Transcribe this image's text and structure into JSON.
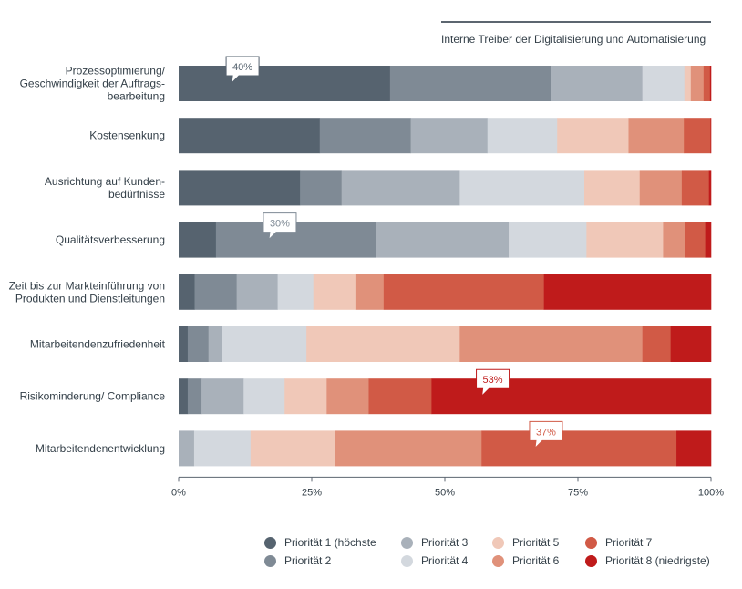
{
  "subtitle": "Interne Treiber der Digitalisierung und Automatisierung",
  "colors": [
    "#56636f",
    "#7f8a95",
    "#a9b1ba",
    "#d3d8de",
    "#f0c8b8",
    "#e0917a",
    "#d15a46",
    "#bf1b1b"
  ],
  "chart_data": {
    "type": "bar",
    "orientation": "horizontal",
    "stacked": true,
    "percent": true,
    "categories": [
      [
        "Prozessoptimierung/",
        "Geschwindigkeit der Auftrags-",
        "bearbeitung"
      ],
      [
        "Kostensenkung"
      ],
      [
        "Ausrichtung auf Kunden-",
        "bedürfnisse"
      ],
      [
        "Qualitätsverbesserung"
      ],
      [
        "Zeit bis zur Markteinführung von",
        "Produkten und Dienstleitungen"
      ],
      [
        "Mitarbeitendenzufriedenheit"
      ],
      [
        "Risikominderung/ Compliance"
      ],
      [
        "Mitarbeitendenentwicklung"
      ]
    ],
    "series": [
      {
        "name": "Priorität 1 (höchste",
        "values": [
          39.7,
          26.5,
          22.8,
          7.0,
          3.0,
          1.7,
          1.7,
          0.0
        ]
      },
      {
        "name": "Priorität 2",
        "values": [
          30.2,
          17.1,
          7.8,
          30.1,
          7.9,
          3.9,
          2.6,
          0.0
        ]
      },
      {
        "name": "Priorität 3",
        "values": [
          17.2,
          14.4,
          22.2,
          24.9,
          7.7,
          2.6,
          7.9,
          2.9
        ]
      },
      {
        "name": "Priorität 4",
        "values": [
          7.9,
          13.1,
          23.4,
          14.6,
          6.7,
          15.8,
          7.7,
          10.6
        ]
      },
      {
        "name": "Priorität 5",
        "values": [
          1.2,
          13.4,
          10.4,
          14.4,
          7.9,
          28.8,
          7.9,
          15.8
        ]
      },
      {
        "name": "Priorität 6",
        "values": [
          2.4,
          10.4,
          7.9,
          4.1,
          5.3,
          34.3,
          7.9,
          27.6
        ]
      },
      {
        "name": "Priorität 7",
        "values": [
          1.2,
          5.0,
          5.1,
          3.8,
          30.1,
          5.3,
          11.8,
          36.6
        ]
      },
      {
        "name": "Priorität 8 (niedrigste)",
        "values": [
          0.2,
          0.1,
          0.4,
          1.1,
          31.4,
          7.6,
          52.5,
          6.5
        ]
      }
    ],
    "xlim": [
      0,
      100
    ],
    "xticks": [
      0,
      25,
      50,
      75,
      100
    ],
    "xtick_labels": [
      "0%",
      "25%",
      "50%",
      "75%",
      "100%"
    ],
    "grid": false,
    "legend_position": "bottom",
    "annotations": [
      {
        "text": "40%",
        "category_index": 0,
        "at_value": 12,
        "color": "#56636f"
      },
      {
        "text": "30%",
        "category_index": 3,
        "at_value": 19,
        "color": "#7f8a95"
      },
      {
        "text": "53%",
        "category_index": 6,
        "at_value": 59,
        "color": "#bf1b1b"
      },
      {
        "text": "37%",
        "category_index": 7,
        "at_value": 69,
        "color": "#d15a46"
      }
    ]
  }
}
